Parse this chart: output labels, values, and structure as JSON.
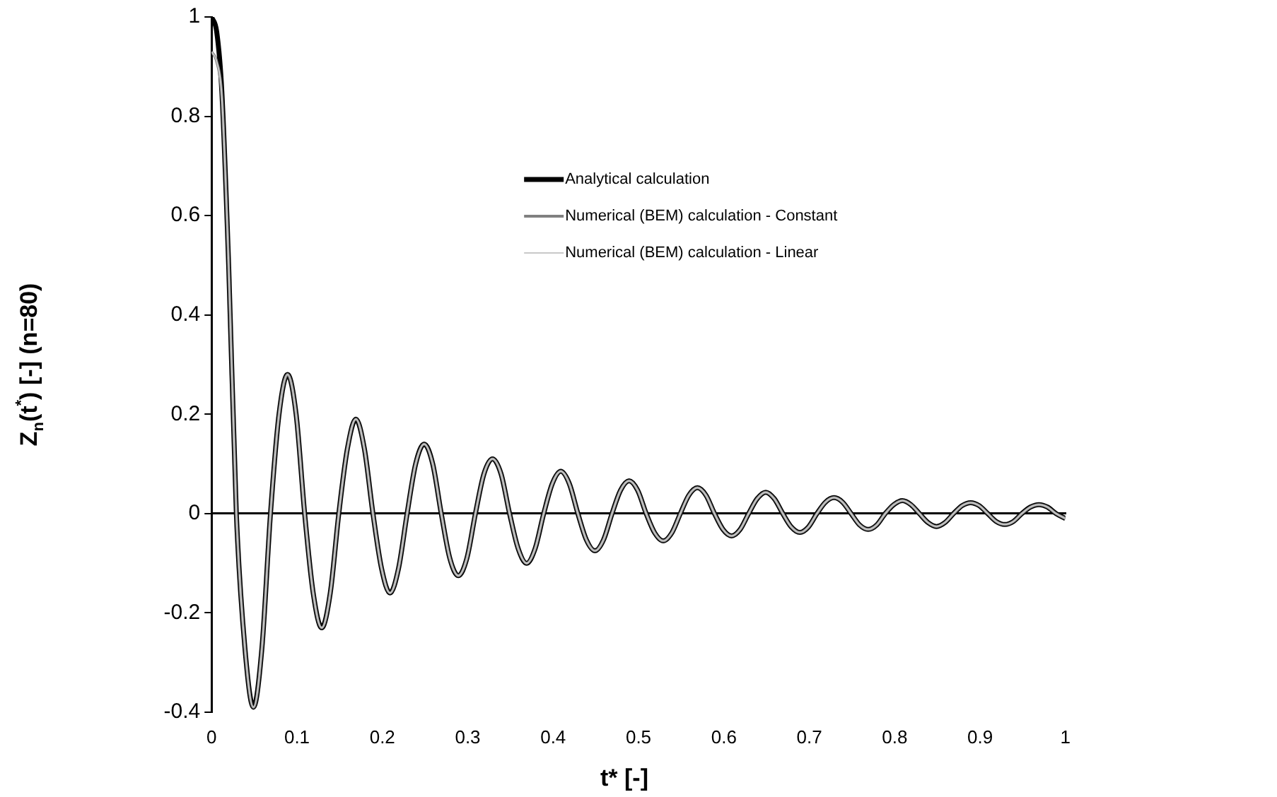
{
  "chart_data": {
    "type": "line",
    "xlabel": "t* [-]",
    "ylabel": "Z$_{n}$(t$^{*}$) [-] (n=80)",
    "xlim": [
      0,
      1
    ],
    "ylim": [
      -0.4,
      1
    ],
    "xticks": [
      0,
      0.1,
      0.2,
      0.3,
      0.4,
      0.5,
      0.6,
      0.7,
      0.8,
      0.9,
      1
    ],
    "yticks": [
      -0.4,
      -0.2,
      0,
      0.2,
      0.4,
      0.6,
      0.8,
      1
    ],
    "legend": "top right",
    "x": [
      0,
      0.006,
      0.012,
      0.02,
      0.029,
      0.039,
      0.049,
      0.059,
      0.069,
      0.079,
      0.089,
      0.099,
      0.109,
      0.119,
      0.129,
      0.139,
      0.149,
      0.159,
      0.169,
      0.179,
      0.189,
      0.199,
      0.209,
      0.219,
      0.229,
      0.239,
      0.249,
      0.259,
      0.269,
      0.279,
      0.289,
      0.299,
      0.309,
      0.319,
      0.329,
      0.339,
      0.349,
      0.359,
      0.369,
      0.379,
      0.389,
      0.399,
      0.409,
      0.419,
      0.429,
      0.439,
      0.449,
      0.459,
      0.469,
      0.479,
      0.489,
      0.499,
      0.509,
      0.519,
      0.529,
      0.539,
      0.549,
      0.559,
      0.569,
      0.579,
      0.589,
      0.599,
      0.609,
      0.619,
      0.629,
      0.639,
      0.649,
      0.659,
      0.669,
      0.679,
      0.689,
      0.699,
      0.709,
      0.719,
      0.729,
      0.739,
      0.749,
      0.759,
      0.769,
      0.779,
      0.789,
      0.799,
      0.809,
      0.819,
      0.829,
      0.839,
      0.849,
      0.859,
      0.869,
      0.879,
      0.889,
      0.899,
      0.909,
      0.919,
      0.929,
      0.939,
      0.949,
      0.959,
      0.969,
      0.979,
      0.989,
      1
    ],
    "series": [
      {
        "name": "Analytical calculation",
        "color": "#000000",
        "values": [
          1,
          0.97,
          0.85,
          0.5,
          0,
          -0.27,
          -0.39,
          -0.27,
          0,
          0.2,
          0.28,
          0.2,
          0,
          -0.16,
          -0.23,
          -0.16,
          0,
          0.13,
          0.19,
          0.13,
          0,
          -0.11,
          -0.16,
          -0.11,
          0,
          0.1,
          0.14,
          0.1,
          0,
          -0.09,
          -0.125,
          -0.09,
          0,
          0.08,
          0.11,
          0.08,
          0,
          -0.07,
          -0.1,
          -0.07,
          0,
          0.06,
          0.085,
          0.06,
          0,
          -0.053,
          -0.075,
          -0.053,
          0,
          0.047,
          0.066,
          0.047,
          0,
          -0.039,
          -0.055,
          -0.039,
          0,
          0.037,
          0.052,
          0.037,
          0,
          -0.032,
          -0.045,
          -0.032,
          0,
          0.03,
          0.043,
          0.03,
          0,
          -0.027,
          -0.038,
          -0.027,
          0,
          0.023,
          0.032,
          0.023,
          0,
          -0.023,
          -0.032,
          -0.023,
          0,
          0.018,
          0.026,
          0.018,
          0,
          -0.018,
          -0.026,
          -0.018,
          0,
          0.016,
          0.022,
          0.016,
          0,
          -0.016,
          -0.022,
          -0.016,
          0,
          0.013,
          0.018,
          0.013,
          0,
          -0.01
        ]
      },
      {
        "name": "Numerical (BEM) calculation - Constant",
        "color": "#808080",
        "values": [
          0.93,
          0.91,
          0.84,
          0.5,
          0,
          -0.27,
          -0.39,
          -0.27,
          0,
          0.2,
          0.28,
          0.2,
          0,
          -0.16,
          -0.23,
          -0.16,
          0,
          0.13,
          0.19,
          0.13,
          0,
          -0.11,
          -0.16,
          -0.11,
          0,
          0.1,
          0.14,
          0.1,
          0,
          -0.09,
          -0.125,
          -0.09,
          0,
          0.08,
          0.11,
          0.08,
          0,
          -0.07,
          -0.1,
          -0.07,
          0,
          0.06,
          0.085,
          0.06,
          0,
          -0.053,
          -0.075,
          -0.053,
          0,
          0.047,
          0.066,
          0.047,
          0,
          -0.039,
          -0.055,
          -0.039,
          0,
          0.037,
          0.052,
          0.037,
          0,
          -0.032,
          -0.045,
          -0.032,
          0,
          0.03,
          0.043,
          0.03,
          0,
          -0.027,
          -0.038,
          -0.027,
          0,
          0.023,
          0.032,
          0.023,
          0,
          -0.023,
          -0.032,
          -0.023,
          0,
          0.018,
          0.026,
          0.018,
          0,
          -0.018,
          -0.026,
          -0.018,
          0,
          0.016,
          0.022,
          0.016,
          0,
          -0.016,
          -0.022,
          -0.016,
          0,
          0.013,
          0.018,
          0.013,
          0,
          -0.01
        ]
      },
      {
        "name": "Numerical (BEM) calculation - Linear",
        "color": "#c8c8c8",
        "values": [
          0.93,
          0.91,
          0.84,
          0.5,
          0,
          -0.27,
          -0.39,
          -0.27,
          0,
          0.2,
          0.28,
          0.2,
          0,
          -0.16,
          -0.23,
          -0.16,
          0,
          0.13,
          0.19,
          0.13,
          0,
          -0.11,
          -0.16,
          -0.11,
          0,
          0.1,
          0.14,
          0.1,
          0,
          -0.09,
          -0.125,
          -0.09,
          0,
          0.08,
          0.11,
          0.08,
          0,
          -0.07,
          -0.1,
          -0.07,
          0,
          0.06,
          0.085,
          0.06,
          0,
          -0.053,
          -0.075,
          -0.053,
          0,
          0.047,
          0.066,
          0.047,
          0,
          -0.039,
          -0.055,
          -0.039,
          0,
          0.037,
          0.052,
          0.037,
          0,
          -0.032,
          -0.045,
          -0.032,
          0,
          0.03,
          0.043,
          0.03,
          0,
          -0.027,
          -0.038,
          -0.027,
          0,
          0.023,
          0.032,
          0.023,
          0,
          -0.023,
          -0.032,
          -0.023,
          0,
          0.018,
          0.026,
          0.018,
          0,
          -0.018,
          -0.026,
          -0.018,
          0,
          0.016,
          0.022,
          0.016,
          0,
          -0.016,
          -0.022,
          -0.016,
          0,
          0.013,
          0.018,
          0.013,
          0,
          -0.01
        ]
      }
    ]
  }
}
